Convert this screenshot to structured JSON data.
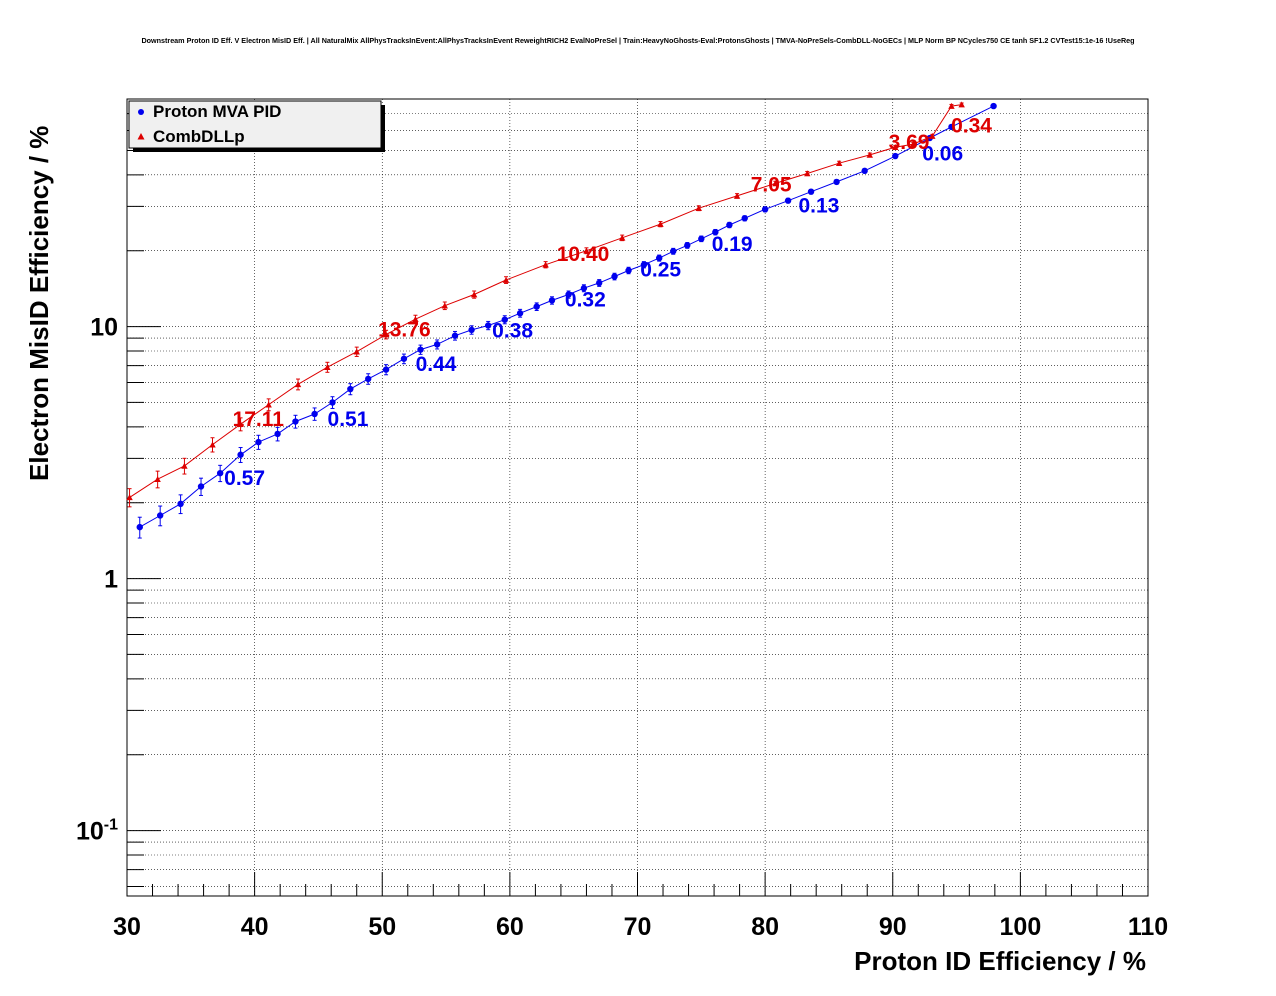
{
  "chart_data": {
    "type": "line",
    "title": "Downstream Proton ID Eff. V Electron MisID Eff. | All NaturalMix AllPhysTracksInEvent:AllPhysTracksInEvent ReweightRICH2 EvalNoPreSel | Train:HeavyNoGhosts-Eval:ProtonsGhosts | TMVA-NoPreSels-CombDLL-NoGECs | MLP Norm BP NCycles750 CE tanh SF1.2 CVTest15:1e-16 !UseReg",
    "xlabel": "Proton ID Efficiency / %",
    "ylabel": "Electron MisID Efficiency / %",
    "xlim": [
      30,
      110
    ],
    "ylim": [
      0.055,
      80
    ],
    "yscale": "log",
    "grid": true,
    "x_ticks": [
      "30",
      "40",
      "50",
      "60",
      "70",
      "80",
      "90",
      "100",
      "110"
    ],
    "y_ticks": [
      {
        "value": 0.1,
        "base": "10",
        "exp": "-1"
      },
      {
        "value": 1,
        "base": "1",
        "exp": ""
      },
      {
        "value": 10,
        "base": "10",
        "exp": ""
      }
    ],
    "legend": {
      "position": "top-left"
    },
    "series": [
      {
        "name": "Proton MVA PID",
        "color": "#0000ee",
        "marker": "circle",
        "x": [
          31.0,
          32.6,
          34.2,
          35.8,
          37.3,
          38.9,
          40.3,
          41.8,
          43.2,
          44.7,
          46.1,
          47.5,
          48.9,
          50.3,
          51.7,
          53.0,
          54.3,
          55.7,
          57.0,
          58.3,
          59.6,
          60.8,
          62.1,
          63.3,
          64.6,
          65.8,
          67.0,
          68.2,
          69.3,
          70.5,
          71.7,
          72.8,
          73.9,
          75.0,
          76.1,
          77.2,
          78.4,
          80.0,
          81.8,
          83.6,
          85.6,
          87.8,
          90.2,
          92.9,
          94.6,
          97.9
        ],
        "y": [
          1.6,
          1.78,
          1.98,
          2.32,
          2.62,
          3.1,
          3.48,
          3.75,
          4.2,
          4.5,
          5.0,
          5.65,
          6.2,
          6.75,
          7.45,
          8.1,
          8.5,
          9.2,
          9.7,
          10.1,
          10.65,
          11.3,
          12.0,
          12.7,
          13.4,
          14.2,
          14.9,
          15.8,
          16.7,
          17.6,
          18.7,
          19.9,
          21.0,
          22.3,
          23.7,
          25.3,
          26.9,
          29.2,
          31.6,
          34.3,
          37.5,
          41.5,
          47.5,
          56.0,
          62.0,
          75.0
        ],
        "annotations": [
          {
            "x": 37.3,
            "y": 2.62,
            "label": "0.57"
          },
          {
            "x": 45.4,
            "y": 4.5,
            "label": "0.51"
          },
          {
            "x": 52.3,
            "y": 7.45,
            "label": "0.44"
          },
          {
            "x": 58.3,
            "y": 10.1,
            "label": "0.38"
          },
          {
            "x": 64.0,
            "y": 13.4,
            "label": "0.32"
          },
          {
            "x": 69.9,
            "y": 17.6,
            "label": "0.25"
          },
          {
            "x": 75.5,
            "y": 22.3,
            "label": "0.19"
          },
          {
            "x": 82.3,
            "y": 31.6,
            "label": "0.13"
          },
          {
            "x": 92.0,
            "y": 51.0,
            "label": "0.06"
          }
        ]
      },
      {
        "name": "CombDLLp",
        "color": "#dd0000",
        "marker": "triangle",
        "x": [
          30.2,
          32.4,
          34.5,
          36.7,
          38.9,
          41.1,
          43.4,
          45.7,
          48.0,
          50.3,
          52.6,
          54.9,
          57.2,
          59.7,
          62.8,
          66.0,
          68.8,
          71.8,
          74.8,
          77.8,
          80.8,
          83.3,
          85.8,
          88.2,
          90.2,
          91.6,
          93.1,
          94.6,
          95.4
        ],
        "y": [
          2.1,
          2.48,
          2.8,
          3.4,
          4.1,
          4.9,
          5.9,
          6.9,
          7.95,
          9.3,
          10.7,
          12.1,
          13.4,
          15.3,
          17.6,
          20.0,
          22.5,
          25.5,
          29.5,
          33.0,
          37.0,
          40.5,
          44.5,
          48.0,
          51.5,
          53.0,
          57.0,
          75.0,
          76.0
        ],
        "annotations": [
          {
            "x": 38.9,
            "y": 4.1,
            "label": "17.11"
          },
          {
            "x": 50.3,
            "y": 9.3,
            "label": "13.76"
          },
          {
            "x": 64.3,
            "y": 18.5,
            "label": "10.40"
          },
          {
            "x": 79.5,
            "y": 35.0,
            "label": "7.05"
          },
          {
            "x": 90.3,
            "y": 51.5,
            "label": "3.69"
          },
          {
            "x": 95.2,
            "y": 60.0,
            "label": "0.34"
          }
        ]
      }
    ]
  }
}
